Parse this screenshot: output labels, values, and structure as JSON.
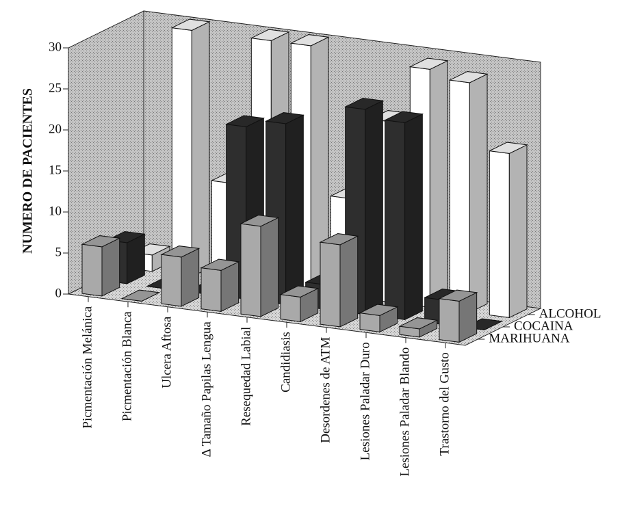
{
  "chart_data": {
    "type": "bar3d",
    "y_label": "NUMERO DE PACIENTES",
    "categories": [
      "Picmentación Melánica",
      "Picmentación Blanca",
      "Ulcera Aftosa",
      "Δ Tamaño Papilas Lengua",
      "Resequedad Labial",
      "Candidiasis",
      "Desordenes de ATM",
      "Lesiones Paladar Duro",
      "Lesiones Paladar Blando",
      "Trastorno del Gusto"
    ],
    "series": [
      {
        "name": "MARIHUANA",
        "color": "#a9a9a9",
        "values": [
          6,
          0,
          6,
          5,
          11,
          3,
          10,
          2,
          1,
          5
        ]
      },
      {
        "name": "COCAINA",
        "color": "#2e2e2e",
        "values": [
          5,
          0,
          0,
          21,
          22,
          3,
          25,
          24,
          3,
          0
        ]
      },
      {
        "name": "ALCOHOL",
        "color": "#ffffff",
        "values": [
          2,
          30,
          12,
          30,
          30,
          12,
          22,
          29,
          28,
          20
        ]
      }
    ],
    "ylim": [
      0,
      30
    ],
    "yticks": [
      0,
      5,
      10,
      15,
      20,
      25,
      30
    ]
  }
}
